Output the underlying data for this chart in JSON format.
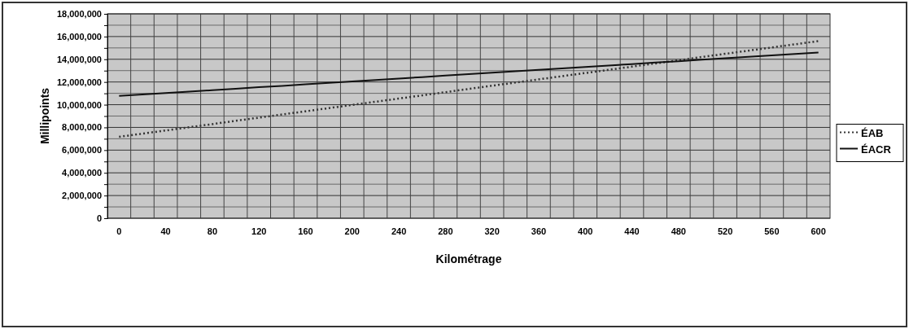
{
  "chart_data": {
    "type": "line",
    "xlabel": "Kilométrage",
    "ylabel": "Millipoints",
    "categories": [
      "0",
      null,
      "40",
      null,
      "80",
      null,
      "120",
      null,
      "160",
      null,
      "200",
      null,
      "240",
      null,
      "280",
      null,
      "320",
      null,
      "360",
      null,
      "400",
      null,
      "440",
      null,
      "480",
      null,
      "520",
      null,
      "560",
      null,
      "600"
    ],
    "series": [
      {
        "name": "ÉAB",
        "color": "#333333",
        "line_style": "dotted",
        "values": [
          7170000,
          7450000,
          7730000,
          8010000,
          8290000,
          8580000,
          8860000,
          9140000,
          9420000,
          9700000,
          9980000,
          10260000,
          10540000,
          10820000,
          11100000,
          11390000,
          11670000,
          11950000,
          12230000,
          12510000,
          12790000,
          13070000,
          13350000,
          13630000,
          13910000,
          14200000,
          14480000,
          14760000,
          15040000,
          15320000,
          15600000
        ]
      },
      {
        "name": "ÉACR",
        "color": "#111111",
        "line_style": "solid",
        "values": [
          10770000,
          10900000,
          11030000,
          11150000,
          11280000,
          11410000,
          11540000,
          11660000,
          11790000,
          11920000,
          12050000,
          12170000,
          12300000,
          12430000,
          12560000,
          12690000,
          12810000,
          12940000,
          13070000,
          13200000,
          13320000,
          13450000,
          13580000,
          13710000,
          13830000,
          13960000,
          14090000,
          14220000,
          14340000,
          14470000,
          14600000
        ]
      }
    ],
    "ylim": [
      0,
      18000000
    ],
    "yticks": [
      {
        "value": 0,
        "label": "0"
      },
      {
        "value": 1000000,
        "label": null
      },
      {
        "value": 2000000,
        "label": "2,000,000"
      },
      {
        "value": 3000000,
        "label": null
      },
      {
        "value": 4000000,
        "label": "4,000,000"
      },
      {
        "value": 5000000,
        "label": null
      },
      {
        "value": 6000000,
        "label": "6,000,000"
      },
      {
        "value": 7000000,
        "label": null
      },
      {
        "value": 8000000,
        "label": "8,000,000"
      },
      {
        "value": 9000000,
        "label": null
      },
      {
        "value": 10000000,
        "label": "10,000,000"
      },
      {
        "value": 11000000,
        "label": null
      },
      {
        "value": 12000000,
        "label": "12,000,000"
      },
      {
        "value": 13000000,
        "label": null
      },
      {
        "value": 14000000,
        "label": "14,000,000"
      },
      {
        "value": 15000000,
        "label": null
      },
      {
        "value": 16000000,
        "label": "16,000,000"
      },
      {
        "value": 17000000,
        "label": null
      },
      {
        "value": 18000000,
        "label": "18,000,000"
      }
    ],
    "grid": true,
    "legend": "right",
    "marker": "none"
  }
}
